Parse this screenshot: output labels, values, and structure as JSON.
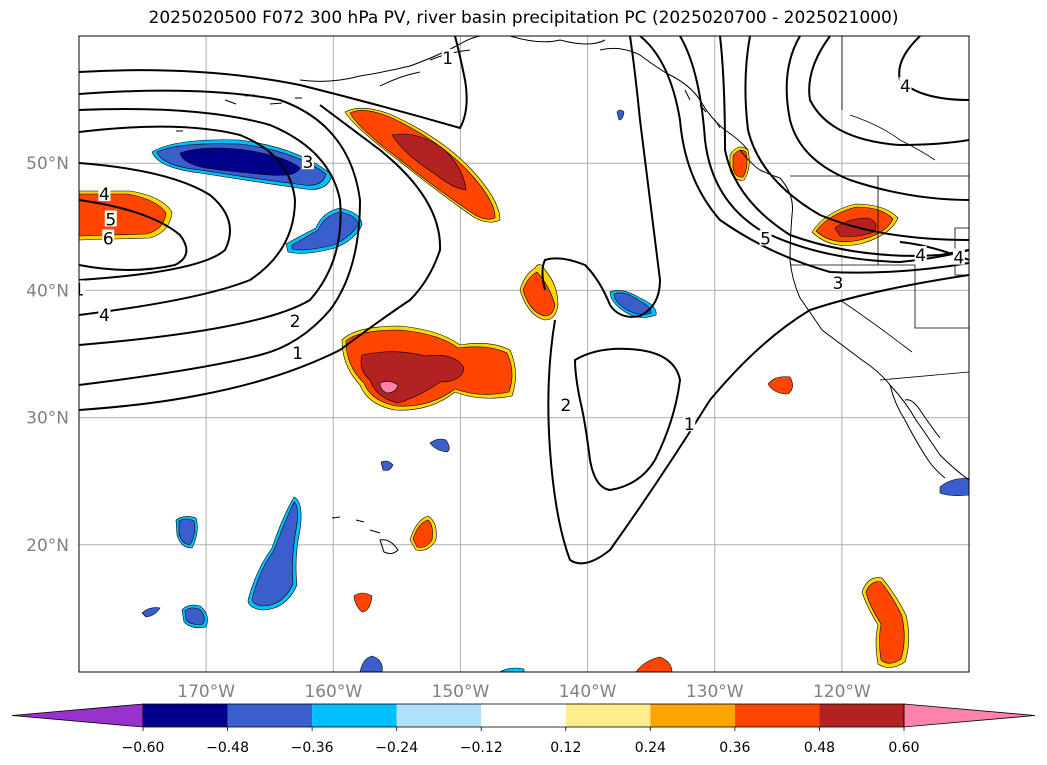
{
  "title": "2025020500 F072 300 hPa PV, river basin precipitation PC (2025020700 - 2025021000)",
  "map": {
    "lon_range": [
      -180,
      -110
    ],
    "lat_range": [
      10,
      60
    ],
    "lat_ticks": [
      {
        "value": 50,
        "label": "50°N"
      },
      {
        "value": 40,
        "label": "40°N"
      },
      {
        "value": 30,
        "label": "30°N"
      },
      {
        "value": 20,
        "label": "20°N"
      }
    ],
    "lon_ticks": [
      {
        "value": -170,
        "label": "170°W"
      },
      {
        "value": -160,
        "label": "160°W"
      },
      {
        "value": -150,
        "label": "150°W"
      },
      {
        "value": -140,
        "label": "140°W"
      },
      {
        "value": -130,
        "label": "130°W"
      },
      {
        "value": -120,
        "label": "120°W"
      }
    ],
    "grid": true
  },
  "pv_contour_labels": [
    {
      "text": "1",
      "lon": -180,
      "lat": 40
    },
    {
      "text": "4",
      "lon": -178,
      "lat": 47.5
    },
    {
      "text": "5",
      "lon": -177.5,
      "lat": 45.5
    },
    {
      "text": "6",
      "lon": -177.7,
      "lat": 44
    },
    {
      "text": "4",
      "lon": -178,
      "lat": 38
    },
    {
      "text": "3",
      "lon": -162,
      "lat": 50
    },
    {
      "text": "2",
      "lon": -163,
      "lat": 37.5
    },
    {
      "text": "1",
      "lon": -162.8,
      "lat": 35
    },
    {
      "text": "1",
      "lon": -151,
      "lat": 58.2
    },
    {
      "text": "2",
      "lon": -141.7,
      "lat": 30.9
    },
    {
      "text": "1",
      "lon": -132,
      "lat": 29.4
    },
    {
      "text": "5",
      "lon": -126,
      "lat": 44
    },
    {
      "text": "3",
      "lon": -120.3,
      "lat": 40.5
    },
    {
      "text": "4",
      "lon": -113.8,
      "lat": 42.7
    },
    {
      "text": "4",
      "lon": -110.8,
      "lat": 42.5
    },
    {
      "text": "4",
      "lon": -115,
      "lat": 56
    }
  ],
  "colorbar": {
    "colors": [
      "#9932cc",
      "#00008b",
      "#3a5fcd",
      "#00bfff",
      "#b0e2ff",
      "#ffffff",
      "#ffec8b",
      "#ffa500",
      "#ff4500",
      "#b22222",
      "#ff82ab"
    ],
    "tick_labels": [
      "−0.60",
      "−0.48",
      "−0.36",
      "−0.24",
      "−0.12",
      "0.12",
      "0.24",
      "0.36",
      "0.48",
      "0.60"
    ]
  }
}
